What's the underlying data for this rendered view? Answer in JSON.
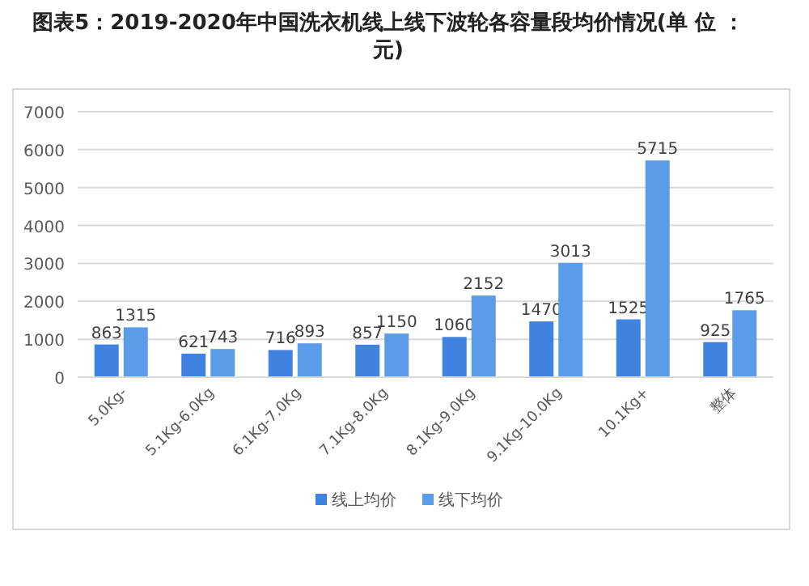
{
  "chart_data": {
    "type": "bar",
    "title": "图表5：2019-2020年中国洗衣机线上线下波轮各容量段均价情况(单 位 ：元)",
    "categories": [
      "5.0Kg-",
      "5.1Kg-6.0Kg",
      "6.1Kg-7.0Kg",
      "7.1Kg-8.0Kg",
      "8.1Kg-9.0Kg",
      "9.1Kg-10.0Kg",
      "10.1Kg+",
      "整体"
    ],
    "series": [
      {
        "name": "线上均价",
        "color": "#3f82e0",
        "values": [
          863,
          621,
          716,
          857,
          1060,
          1470,
          1525,
          925
        ]
      },
      {
        "name": "线下均价",
        "color": "#5b9ce9",
        "values": [
          1315,
          743,
          893,
          1150,
          2152,
          3013,
          5715,
          1765
        ]
      }
    ],
    "ylim": [
      0,
      7000
    ],
    "yticks": [
      0,
      1000,
      2000,
      3000,
      4000,
      5000,
      6000,
      7000
    ],
    "grid": "y",
    "legend": "bottom",
    "data_labels": true
  }
}
